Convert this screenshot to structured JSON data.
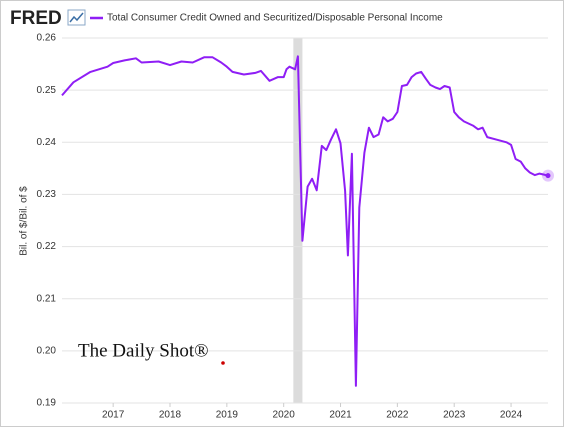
{
  "chart_data": {
    "type": "line",
    "logo": "FRED",
    "watermark": "The Daily Shot®",
    "y_label": "Bil. of $/Bil. of $",
    "shading": [
      2020.17,
      2020.33
    ],
    "x": [
      2016.1,
      2016.3,
      2016.6,
      2016.9,
      2017.0,
      2017.2,
      2017.4,
      2017.5,
      2017.8,
      2018.0,
      2018.2,
      2018.4,
      2018.6,
      2018.75,
      2018.9,
      2019.0,
      2019.1,
      2019.3,
      2019.5,
      2019.6,
      2019.75,
      2019.9,
      2020.0,
      2020.05,
      2020.1,
      2020.2,
      2020.25,
      2020.33,
      2020.42,
      2020.5,
      2020.58,
      2020.67,
      2020.75,
      2020.83,
      2020.92,
      2021.0,
      2021.08,
      2021.13,
      2021.2,
      2021.27,
      2021.33,
      2021.42,
      2021.5,
      2021.58,
      2021.67,
      2021.75,
      2021.83,
      2021.92,
      2022.0,
      2022.08,
      2022.17,
      2022.25,
      2022.33,
      2022.42,
      2022.5,
      2022.58,
      2022.67,
      2022.75,
      2022.83,
      2022.92,
      2023.0,
      2023.08,
      2023.17,
      2023.33,
      2023.42,
      2023.5,
      2023.58,
      2023.75,
      2023.92,
      2024.0,
      2024.08,
      2024.17,
      2024.25,
      2024.33,
      2024.42,
      2024.5,
      2024.58,
      2024.65
    ],
    "series": [
      {
        "name": "Total Consumer Credit Owned and Securitized/Disposable Personal Income",
        "color": "#8f1ef5",
        "values": [
          0.249,
          0.2515,
          0.2535,
          0.2545,
          0.2552,
          0.2557,
          0.2561,
          0.2553,
          0.2555,
          0.2548,
          0.2555,
          0.2553,
          0.2563,
          0.2563,
          0.2553,
          0.2545,
          0.2535,
          0.253,
          0.2533,
          0.2537,
          0.2518,
          0.2525,
          0.2525,
          0.254,
          0.2545,
          0.254,
          0.2565,
          0.2211,
          0.2315,
          0.233,
          0.2308,
          0.2393,
          0.2385,
          0.2405,
          0.2425,
          0.2398,
          0.2307,
          0.2183,
          0.2378,
          0.1933,
          0.2275,
          0.238,
          0.2428,
          0.241,
          0.2415,
          0.2448,
          0.244,
          0.2445,
          0.2458,
          0.2508,
          0.251,
          0.2525,
          0.2532,
          0.2535,
          0.2522,
          0.251,
          0.2505,
          0.2502,
          0.2508,
          0.2505,
          0.2458,
          0.2448,
          0.244,
          0.2432,
          0.2425,
          0.2428,
          0.241,
          0.2405,
          0.24,
          0.2395,
          0.2368,
          0.2363,
          0.235,
          0.2342,
          0.2337,
          0.234,
          0.2338,
          0.2336
        ]
      }
    ],
    "xlim": [
      2016.1,
      2024.65
    ],
    "xticks": [
      2017,
      2018,
      2019,
      2020,
      2021,
      2022,
      2023,
      2024
    ],
    "ylim": [
      0.19,
      0.26
    ],
    "yticks": [
      0.19,
      {
        "value": 0.2,
        "label": "0.20"
      },
      0.21,
      0.22,
      0.23,
      0.24,
      0.25,
      0.26
    ],
    "grid": true
  }
}
